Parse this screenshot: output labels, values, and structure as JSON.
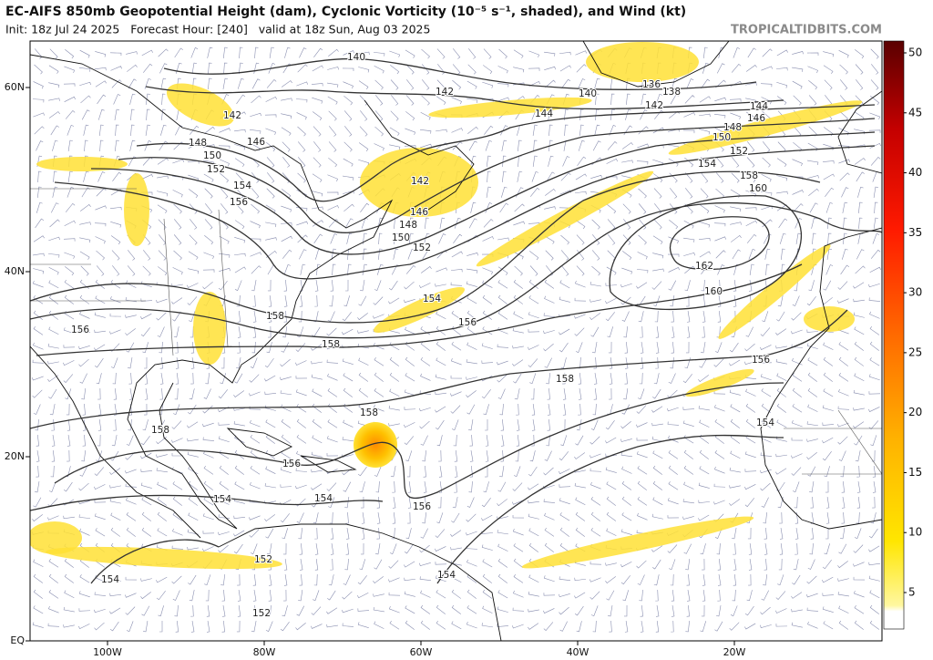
{
  "header": {
    "title": "EC-AIFS 850mb Geopotential Height (dam), Cyclonic Vorticity (10⁻⁵ s⁻¹, shaded), and Wind (kt)",
    "subtitle": "Init: 18z Jul 24 2025   Forecast Hour: [240]   valid at 18z Sun, Aug 03 2025",
    "watermark": "TROPICALTIDBITS.COM"
  },
  "map": {
    "lat_labels": [
      "60N",
      "40N",
      "20N",
      "EQ"
    ],
    "lon_labels": [
      "100W",
      "80W",
      "60W",
      "40W",
      "20W"
    ],
    "contour_labels": [
      "140",
      "142",
      "144",
      "142",
      "146",
      "148",
      "150",
      "152",
      "154",
      "156",
      "142",
      "146",
      "148",
      "150",
      "152",
      "140",
      "136",
      "138",
      "142",
      "144",
      "146",
      "148",
      "150",
      "152",
      "154",
      "158",
      "160",
      "162",
      "160",
      "154",
      "156",
      "158",
      "158",
      "156",
      "158",
      "156",
      "154",
      "158",
      "158",
      "156",
      "156",
      "154",
      "154",
      "152",
      "154",
      "154",
      "152"
    ]
  },
  "colorbar": {
    "ticks": [
      5,
      10,
      15,
      20,
      25,
      30,
      35,
      40,
      45,
      50
    ]
  }
}
